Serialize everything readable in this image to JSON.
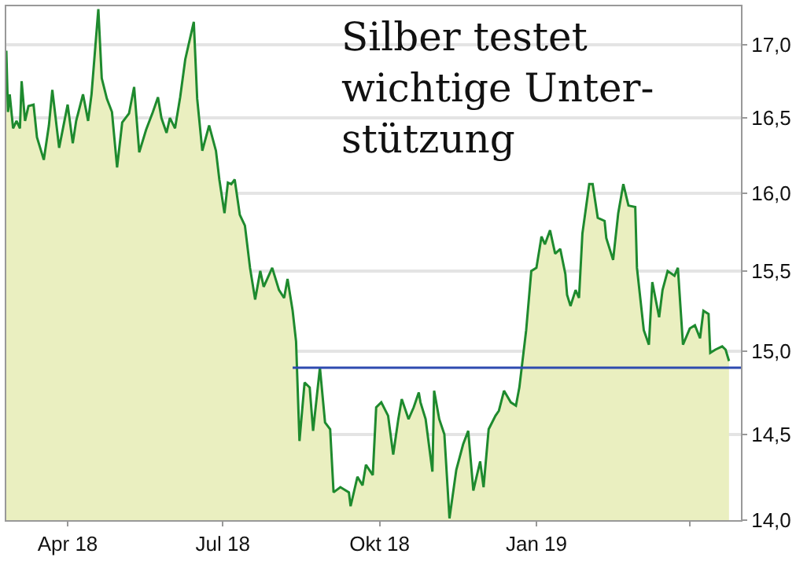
{
  "chart_data": {
    "type": "area",
    "title": "Silber testet\nwichtige Unter-\nstützung",
    "x": [
      "2018-02-24",
      "2018-02-25",
      "2018-02-26",
      "2018-02-28",
      "2018-03-02",
      "2018-03-04",
      "2018-03-05",
      "2018-03-07",
      "2018-03-09",
      "2018-03-12",
      "2018-03-14",
      "2018-03-18",
      "2018-03-21",
      "2018-03-23",
      "2018-03-27",
      "2018-04-01",
      "2018-04-04",
      "2018-04-06",
      "2018-04-10",
      "2018-04-13",
      "2018-04-15",
      "2018-04-19",
      "2018-04-21",
      "2018-04-24",
      "2018-04-27",
      "2018-04-30",
      "2018-05-03",
      "2018-05-07",
      "2018-05-10",
      "2018-05-13",
      "2018-05-17",
      "2018-05-21",
      "2018-05-24",
      "2018-05-26",
      "2018-05-29",
      "2018-05-31",
      "2018-06-03",
      "2018-06-06",
      "2018-06-09",
      "2018-06-14",
      "2018-06-16",
      "2018-06-19",
      "2018-06-23",
      "2018-06-27",
      "2018-06-29",
      "2018-07-02",
      "2018-07-04",
      "2018-07-06",
      "2018-07-08",
      "2018-07-11",
      "2018-07-14",
      "2018-07-17",
      "2018-07-20",
      "2018-07-23",
      "2018-07-25",
      "2018-07-30",
      "2018-08-03",
      "2018-08-06",
      "2018-08-08",
      "2018-08-11",
      "2018-08-13",
      "2018-08-15",
      "2018-08-18",
      "2018-08-21",
      "2018-08-23",
      "2018-08-27",
      "2018-08-30",
      "2018-09-02",
      "2018-09-04",
      "2018-09-08",
      "2018-09-13",
      "2018-09-14",
      "2018-09-18",
      "2018-09-21",
      "2018-09-23",
      "2018-09-27",
      "2018-09-29",
      "2018-10-02",
      "2018-10-06",
      "2018-10-09",
      "2018-10-12",
      "2018-10-14",
      "2018-10-18",
      "2018-10-21",
      "2018-10-24",
      "2018-10-25",
      "2018-10-28",
      "2018-11-01",
      "2018-11-02",
      "2018-11-05",
      "2018-11-08",
      "2018-11-11",
      "2018-11-15",
      "2018-11-19",
      "2018-11-22",
      "2018-11-25",
      "2018-11-29",
      "2018-12-01",
      "2018-12-04",
      "2018-12-08",
      "2018-12-10",
      "2018-12-13",
      "2018-12-17",
      "2018-12-20",
      "2018-12-22",
      "2018-12-26",
      "2018-12-29",
      "2019-01-01",
      "2019-01-04",
      "2019-01-06",
      "2019-01-09",
      "2019-01-12",
      "2019-01-15",
      "2019-01-18",
      "2019-01-19",
      "2019-01-21",
      "2019-01-24",
      "2019-01-26",
      "2019-01-28",
      "2019-02-01",
      "2019-02-03",
      "2019-02-06",
      "2019-02-10",
      "2019-02-11",
      "2019-02-15",
      "2019-02-18",
      "2019-02-21",
      "2019-02-24",
      "2019-02-28",
      "2019-03-01",
      "2019-03-05",
      "2019-03-08",
      "2019-03-10",
      "2019-03-14",
      "2019-03-16",
      "2019-03-19",
      "2019-03-23",
      "2019-03-25",
      "2019-03-28",
      "2019-04-01",
      "2019-04-04",
      "2019-04-07",
      "2019-04-09",
      "2019-04-12",
      "2019-04-13",
      "2019-04-16",
      "2019-04-20",
      "2019-04-22",
      "2019-04-24"
    ],
    "series": [
      {
        "color": "#1e8a2e",
        "values": [
          16.96,
          16.54,
          16.66,
          16.43,
          16.48,
          16.43,
          16.75,
          16.48,
          16.58,
          16.59,
          16.37,
          16.22,
          16.45,
          16.69,
          16.3,
          16.59,
          16.33,
          16.48,
          16.66,
          16.48,
          16.66,
          17.25,
          16.77,
          16.63,
          16.54,
          16.17,
          16.47,
          16.53,
          16.71,
          16.27,
          16.42,
          16.54,
          16.64,
          16.5,
          16.4,
          16.5,
          16.43,
          16.64,
          16.9,
          17.16,
          16.63,
          16.28,
          16.45,
          16.28,
          16.09,
          15.87,
          16.07,
          16.06,
          16.09,
          15.86,
          15.79,
          15.52,
          15.32,
          15.5,
          15.4,
          15.52,
          15.38,
          15.33,
          15.45,
          15.25,
          15.06,
          14.46,
          14.81,
          14.78,
          14.52,
          14.9,
          14.57,
          14.53,
          14.16,
          14.19,
          14.16,
          14.08,
          14.25,
          14.2,
          14.32,
          14.26,
          14.66,
          14.69,
          14.61,
          14.38,
          14.59,
          14.71,
          14.59,
          14.66,
          14.75,
          14.69,
          14.59,
          14.28,
          14.76,
          14.59,
          14.5,
          14.01,
          14.29,
          14.44,
          14.52,
          14.17,
          14.34,
          14.19,
          14.53,
          14.61,
          14.64,
          14.76,
          14.69,
          14.67,
          14.78,
          15.13,
          15.5,
          15.52,
          15.72,
          15.67,
          15.76,
          15.61,
          15.64,
          15.48,
          15.35,
          15.28,
          15.38,
          15.33,
          15.74,
          16.06,
          16.06,
          15.84,
          15.82,
          15.71,
          15.57,
          15.87,
          16.06,
          15.92,
          15.91,
          15.52,
          15.13,
          15.04,
          15.43,
          15.21,
          15.38,
          15.5,
          15.47,
          15.52,
          15.04,
          15.14,
          15.16,
          15.08,
          15.25,
          15.23,
          14.99,
          15.01,
          15.03,
          15.01,
          14.94
        ]
      },
      {
        "type": "line",
        "color": "#2e4bb0",
        "x": [
          "2018-08-11",
          "2019-05-01"
        ],
        "values": [
          14.9,
          14.9
        ]
      }
    ],
    "xlim": [
      "2018-02-24",
      "2019-05-01"
    ],
    "xticks": [
      {
        "value": "2018-04-01",
        "label": "Apr 18"
      },
      {
        "value": "2018-07-01",
        "label": "Jul 18"
      },
      {
        "value": "2018-10-01",
        "label": "Okt 18"
      },
      {
        "value": "2019-01-01",
        "label": "Jan 19"
      },
      {
        "value": "2019-04-01",
        "label": null
      }
    ],
    "ylim": [
      14.0,
      17.27
    ],
    "yticks": [
      {
        "value": 14.0,
        "label": "14,0"
      },
      {
        "value": 14.5,
        "label": "14,5"
      },
      {
        "value": 15.0,
        "label": "15,0"
      },
      {
        "value": 15.5,
        "label": "15,5"
      },
      {
        "value": 16.0,
        "label": "16,0"
      },
      {
        "value": 16.5,
        "label": "16,5"
      },
      {
        "value": 17.0,
        "label": "17,0"
      }
    ],
    "log": "y",
    "grid": "y"
  }
}
